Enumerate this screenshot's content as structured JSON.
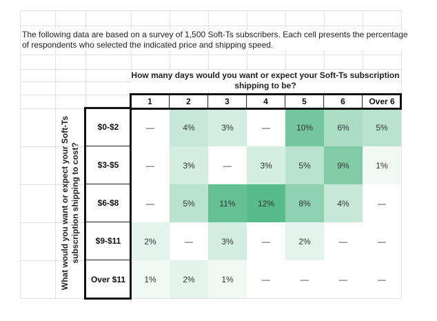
{
  "intro_text": "The following data are based on a survey of 1,500 Soft-Ts subscribers. Each cell presents the percentage of respondents who selected the indicated price and shipping speed.",
  "column_question": "How many days would you want or expect your Soft-Ts subscription shipping to be?",
  "row_question": "What would you want or expect your Soft-Ts subscription shipping to cost?",
  "columns": [
    "1",
    "2",
    "3",
    "4",
    "5",
    "6",
    "Over 6"
  ],
  "rows": [
    {
      "label": "$0-$2",
      "values": [
        "—",
        "4%",
        "3%",
        "—",
        "10%",
        "6%",
        "5%"
      ]
    },
    {
      "label": "$3-$5",
      "values": [
        "—",
        "3%",
        "—",
        "3%",
        "5%",
        "9%",
        "1%"
      ]
    },
    {
      "label": "$6-$8",
      "values": [
        "—",
        "5%",
        "11%",
        "12%",
        "8%",
        "4%",
        "—"
      ]
    },
    {
      "label": "$9-$11",
      "values": [
        "2%",
        "—",
        "3%",
        "—",
        "2%",
        "—",
        "—"
      ]
    },
    {
      "label": "Over $11",
      "values": [
        "1%",
        "2%",
        "1%",
        "—",
        "—",
        "—",
        "—"
      ]
    }
  ],
  "chart_data": {
    "type": "heatmap",
    "title": "",
    "x_label": "How many days would you want or expect your Soft-Ts subscription shipping to be?",
    "y_label": "What would you want or expect your Soft-Ts subscription shipping to cost?",
    "x_categories": [
      "1",
      "2",
      "3",
      "4",
      "5",
      "6",
      "Over 6"
    ],
    "y_categories": [
      "$0-$2",
      "$3-$5",
      "$6-$8",
      "$9-$11",
      "Over $11"
    ],
    "values_percent": [
      [
        null,
        4,
        3,
        null,
        10,
        6,
        5
      ],
      [
        null,
        3,
        null,
        3,
        5,
        9,
        1
      ],
      [
        null,
        5,
        11,
        12,
        8,
        4,
        null
      ],
      [
        2,
        null,
        3,
        null,
        2,
        null,
        null
      ],
      [
        1,
        2,
        1,
        null,
        null,
        null,
        null
      ]
    ],
    "color_scale": {
      "low": "#ffffff",
      "high": "#57bb8a"
    }
  }
}
